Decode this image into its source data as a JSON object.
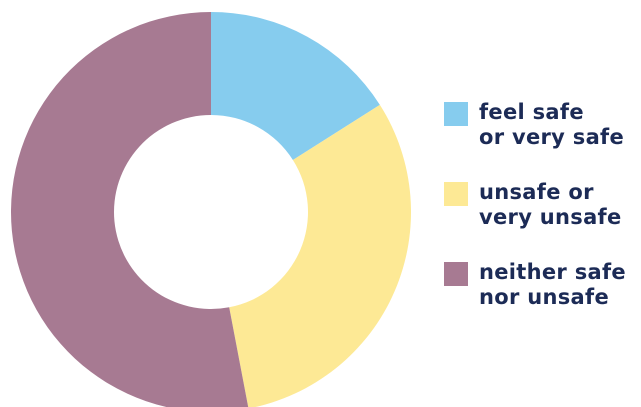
{
  "chart_data": {
    "type": "pie",
    "donut": true,
    "title": "",
    "categories": [
      "feel safe\nor very safe",
      "unsafe or\nvery unsafe",
      "neither safe\nnor unsafe"
    ],
    "values": [
      16,
      31,
      53
    ],
    "colors": [
      "#86ccee",
      "#fde995",
      "#a77a92"
    ],
    "legend_position": "right"
  },
  "legend_text_color": "#1c2b56"
}
